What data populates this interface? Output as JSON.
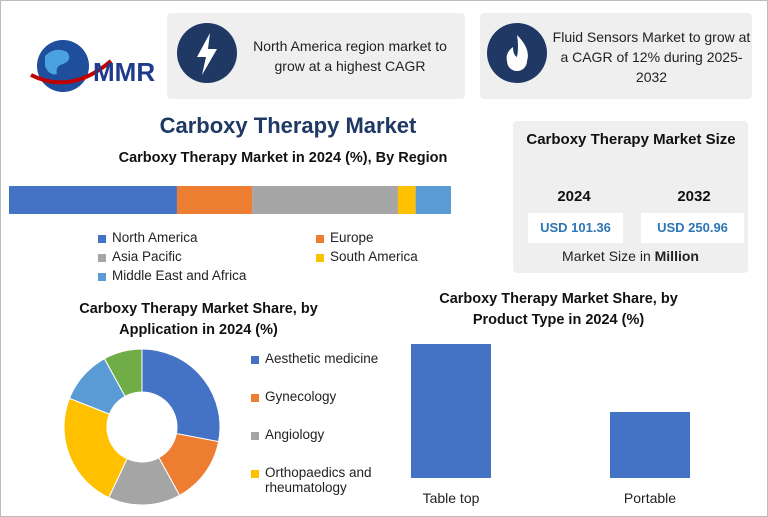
{
  "logo": "MMR",
  "callouts": [
    "North America region market to grow at a highest CAGR",
    "Fluid Sensors Market to grow at a CAGR of 12% during 2025-2032"
  ],
  "title": "Carboxy Therapy Market",
  "market_size": {
    "title": "Carboxy Therapy Market Size",
    "years": [
      "2024",
      "2032"
    ],
    "values": [
      "USD 101.36",
      "USD 250.96"
    ],
    "note": "Market Size in",
    "unit": "Million"
  },
  "chart_data": [
    {
      "type": "stacked-bar",
      "title": "Carboxy Therapy Market in 2024 (%), By Region",
      "series": [
        {
          "name": "North America",
          "color": "#4472c4",
          "values": [
            38
          ]
        },
        {
          "name": "Europe",
          "color": "#ed7d31",
          "values": [
            17
          ]
        },
        {
          "name": "Asia Pacific",
          "color": "#a5a5a5",
          "values": [
            33
          ]
        },
        {
          "name": "South America",
          "color": "#ffc000",
          "values": [
            4
          ]
        },
        {
          "name": "Middle East and Africa",
          "color": "#5b9bd5",
          "values": [
            8
          ]
        }
      ]
    },
    {
      "type": "donut",
      "title": "Carboxy Therapy Market Share, by Application in 2024 (%)",
      "categories": [
        "Aesthetic medicine",
        "Gynecology",
        "Angiology",
        "Orthopaedics and rheumatology",
        null,
        null
      ],
      "values": [
        28,
        14,
        15,
        24,
        11,
        8
      ],
      "colors": [
        "#4472c4",
        "#ed7d31",
        "#a5a5a5",
        "#ffc000",
        "#5b9bd5",
        "#70ad47"
      ]
    },
    {
      "type": "bar",
      "title": "Carboxy Therapy Market Share, by Product Type in 2024 (%)",
      "categories": [
        "Table top",
        "Portable"
      ],
      "values": [
        67,
        33
      ],
      "color": "#4472c4",
      "ylim": [
        0,
        70
      ]
    }
  ]
}
